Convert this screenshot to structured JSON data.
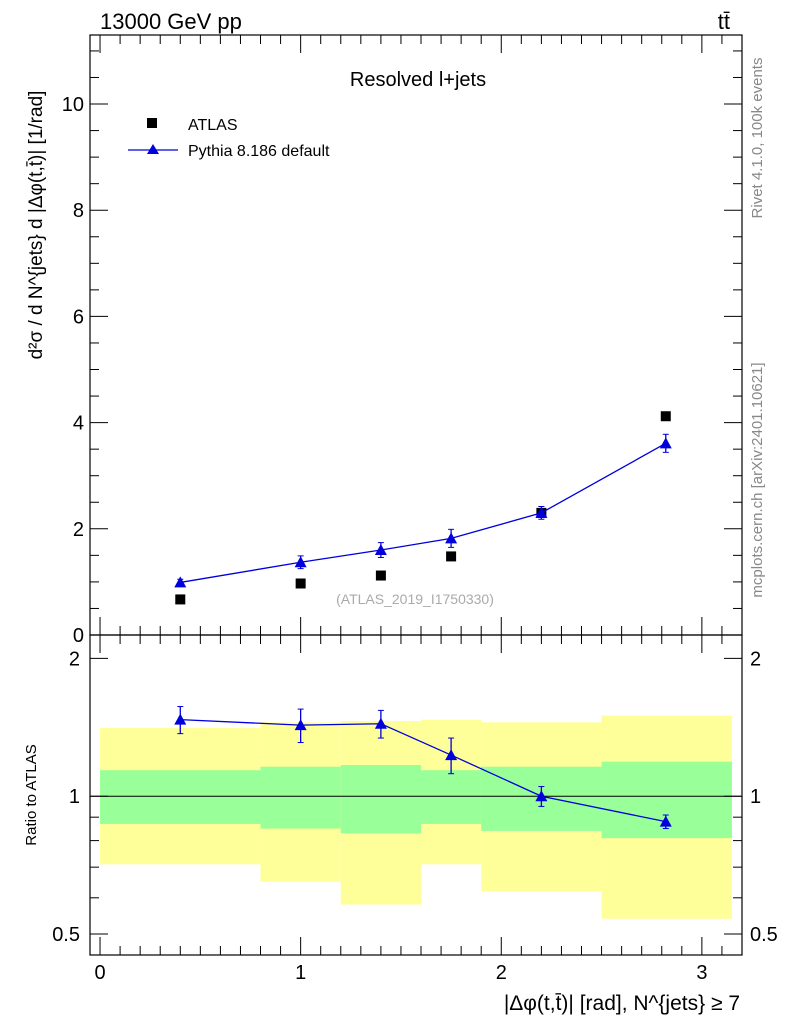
{
  "header": {
    "left": "13000 GeV pp",
    "right": "tt̄"
  },
  "side_labels": {
    "rivet": "Rivet 4.1.0,  100k events",
    "mcplots": "mcplots.cern.ch [arXiv:2401.10621]"
  },
  "chart_data": [
    {
      "type": "scatter",
      "panel": "main",
      "title": "Resolved l+jets",
      "watermark": "(ATLAS_2019_I1750330)",
      "ylabel": "d²σ / d N^{jets} d |Δφ(t,t̄)| [1/rad]",
      "xlim": [
        -0.05,
        3.2
      ],
      "ylim": [
        0,
        11.3
      ],
      "yticks": [
        0,
        2,
        4,
        6,
        8,
        10
      ],
      "legend_position": "top-left",
      "series": [
        {
          "name": "ATLAS",
          "marker": "square",
          "color": "#000000",
          "x": [
            0.4,
            1.0,
            1.4,
            1.75,
            2.2,
            2.82
          ],
          "y": [
            0.67,
            0.97,
            1.12,
            1.48,
            2.3,
            4.12
          ],
          "err": [
            0.02,
            0.03,
            0.03,
            0.04,
            0.08,
            0.08
          ]
        },
        {
          "name": "Pythia 8.186 default",
          "marker": "triangle",
          "line": true,
          "color": "#0000dd",
          "x": [
            0.4,
            1.0,
            1.4,
            1.75,
            2.2,
            2.82
          ],
          "y": [
            0.99,
            1.37,
            1.6,
            1.82,
            2.3,
            3.61
          ],
          "err": [
            0.06,
            0.12,
            0.14,
            0.17,
            0.12,
            0.17
          ]
        }
      ]
    },
    {
      "type": "line",
      "panel": "ratio",
      "ylabel": "Ratio to ATLAS",
      "xlabel": "|Δφ(t,t̄)| [rad], N^{jets} ≥ 7",
      "xlim": [
        -0.05,
        3.2
      ],
      "ylim": [
        0.45,
        2.25
      ],
      "xticks": [
        0,
        1,
        2,
        3
      ],
      "yticks": [
        0.5,
        1,
        2
      ],
      "reference_line": 1,
      "bands": {
        "edges": [
          0,
          0.8,
          1.2,
          1.6,
          1.9,
          2.5,
          3.15
        ],
        "yellow_low": [
          0.71,
          0.65,
          0.58,
          0.71,
          0.62,
          0.54
        ],
        "yellow_high": [
          1.41,
          1.45,
          1.46,
          1.47,
          1.45,
          1.5
        ],
        "green_low": [
          0.87,
          0.85,
          0.83,
          0.87,
          0.84,
          0.81
        ],
        "green_high": [
          1.14,
          1.16,
          1.17,
          1.14,
          1.16,
          1.19
        ]
      },
      "series": [
        {
          "name": "Pythia 8.186 default / ATLAS",
          "color": "#0000dd",
          "x": [
            0.4,
            1.0,
            1.4,
            1.75,
            2.2,
            2.82
          ],
          "y": [
            1.47,
            1.43,
            1.44,
            1.23,
            1.0,
            0.88
          ],
          "err": [
            0.1,
            0.12,
            0.1,
            0.11,
            0.05,
            0.03
          ]
        }
      ]
    }
  ]
}
